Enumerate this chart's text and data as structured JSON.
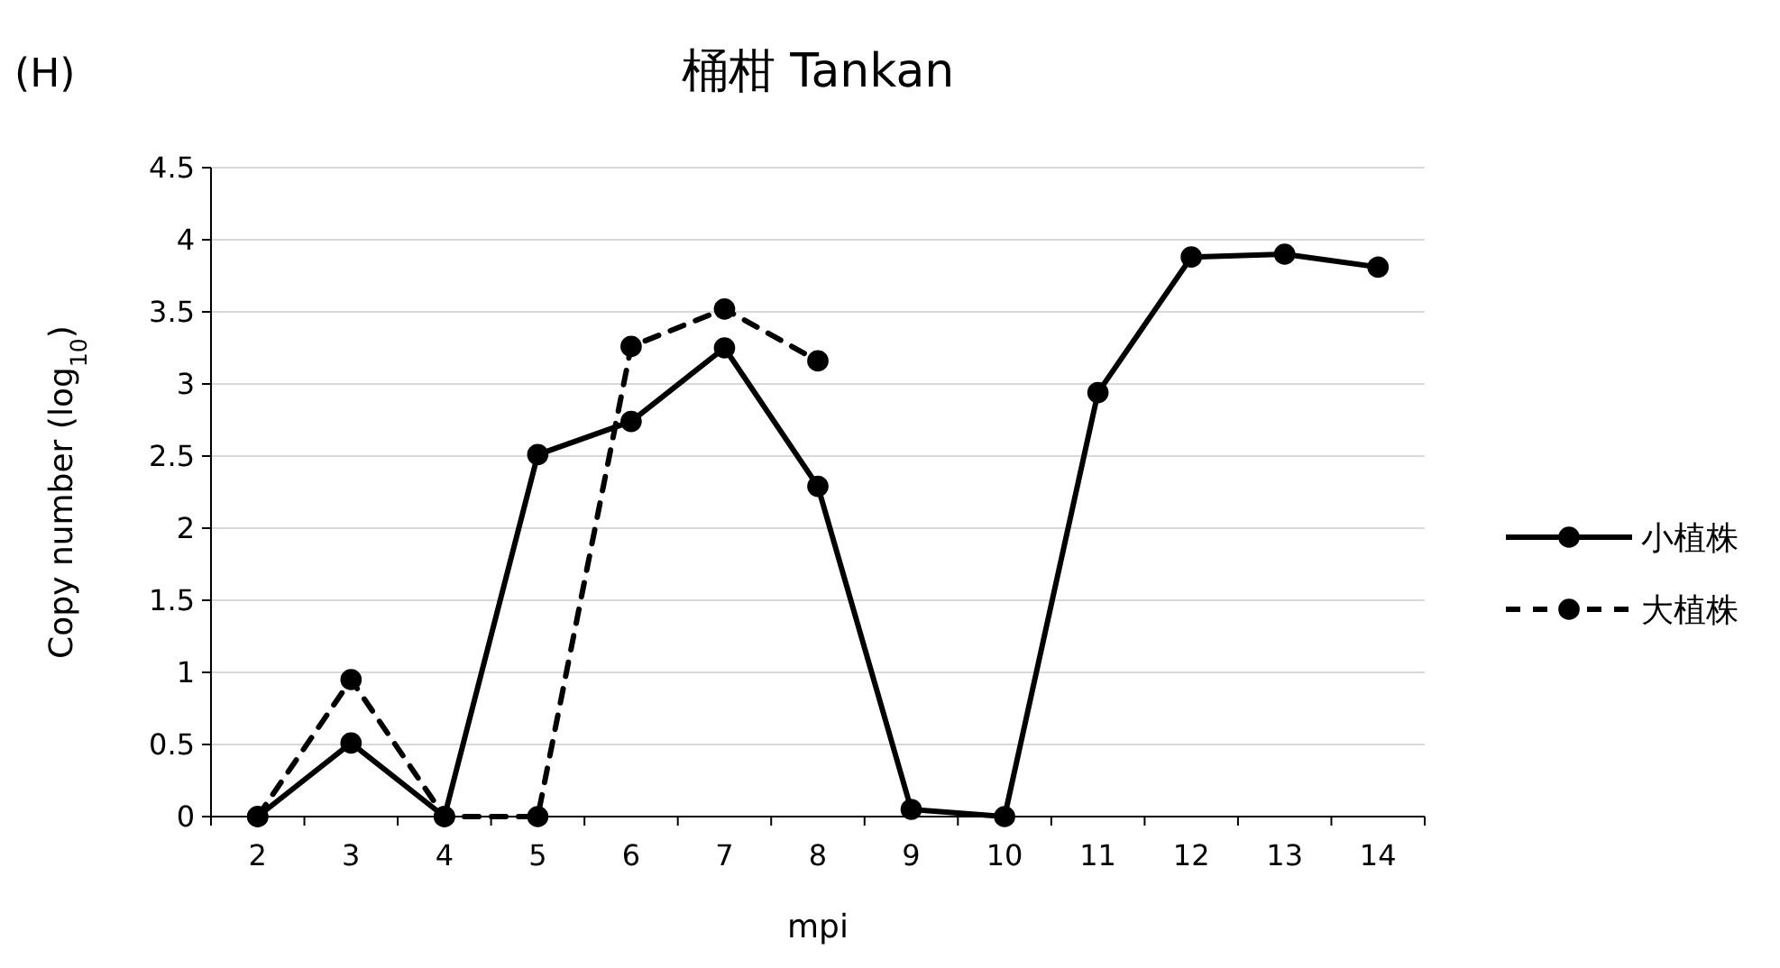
{
  "chart_data": {
    "type": "line",
    "title": "桶柑 Tankan",
    "xlabel": "mpi",
    "ylabel": "Copy number (log$_{10}$)",
    "annotations": [
      "(H)"
    ],
    "categories": [
      "2",
      "3",
      "4",
      "5",
      "6",
      "7",
      "8",
      "9",
      "10",
      "11",
      "12",
      "13",
      "14"
    ],
    "series": [
      {
        "name": "小植株",
        "color": "#000000",
        "line_style": "solid",
        "values": [
          0,
          0.51,
          0,
          2.51,
          2.74,
          3.25,
          2.29,
          0.05,
          0,
          2.94,
          3.88,
          3.9,
          3.81
        ]
      },
      {
        "name": "大植株",
        "color": "#000000",
        "line_style": "dashed",
        "values": [
          0,
          0.95,
          0,
          0,
          3.26,
          3.52,
          3.16,
          null,
          null,
          null,
          null,
          null,
          null
        ]
      }
    ],
    "ylim": [
      0,
      4.5
    ],
    "yticks": [
      0,
      0.5,
      1,
      1.5,
      2,
      2.5,
      3,
      3.5,
      4,
      4.5
    ],
    "grid": "y",
    "legend": "right",
    "marker": "circle"
  }
}
